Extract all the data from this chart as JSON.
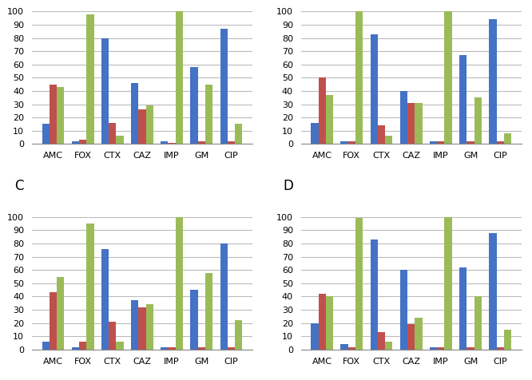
{
  "categories": [
    "AMC",
    "FOX",
    "CTX",
    "CAZ",
    "IMP",
    "GM",
    "CIP"
  ],
  "charts": [
    {
      "label": "",
      "blue": [
        15,
        2,
        80,
        46,
        2,
        58,
        87
      ],
      "red": [
        45,
        3,
        16,
        26,
        1,
        2,
        2
      ],
      "green": [
        43,
        98,
        6,
        29,
        100,
        45,
        15
      ]
    },
    {
      "label": "",
      "blue": [
        16,
        2,
        83,
        40,
        2,
        67,
        94
      ],
      "red": [
        50,
        2,
        14,
        31,
        2,
        2,
        2
      ],
      "green": [
        37,
        100,
        6,
        31,
        100,
        35,
        8
      ]
    },
    {
      "label": "C",
      "blue": [
        6,
        2,
        76,
        37,
        2,
        45,
        80
      ],
      "red": [
        43,
        6,
        21,
        32,
        2,
        2,
        2
      ],
      "green": [
        55,
        95,
        6,
        34,
        100,
        58,
        22
      ]
    },
    {
      "label": "D",
      "blue": [
        20,
        4,
        83,
        60,
        2,
        62,
        88
      ],
      "red": [
        42,
        2,
        13,
        19,
        2,
        2,
        2
      ],
      "green": [
        40,
        99,
        6,
        24,
        100,
        40,
        15
      ]
    }
  ],
  "bar_colors": {
    "blue": "#4472C4",
    "red": "#C0504D",
    "green": "#9BBB59"
  },
  "ylim": [
    0,
    100
  ],
  "yticks": [
    0,
    10,
    20,
    30,
    40,
    50,
    60,
    70,
    80,
    90,
    100
  ],
  "bar_width": 0.25,
  "background_color": "#FFFFFF",
  "grid_color": "#BBBBBB",
  "tick_fontsize": 8,
  "xlabel_fontsize": 9,
  "label_fontsize": 12
}
